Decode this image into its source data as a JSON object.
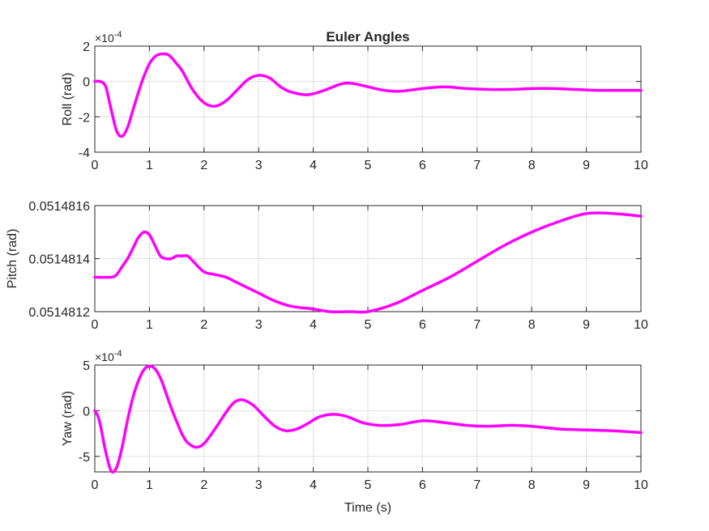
{
  "figure": {
    "title": "Euler Angles",
    "xlabel": "Time (s)",
    "line_color": "#ff00ff"
  },
  "chart_data": [
    {
      "type": "line",
      "title": "Euler Angles",
      "xlabel": "",
      "ylabel": "Roll (rad)",
      "xlim": [
        0,
        10
      ],
      "ylim": [
        -4,
        2
      ],
      "y_exponent_label": "×10^-4",
      "y_scale": 0.0001,
      "xticks": [
        "0",
        "1",
        "2",
        "3",
        "4",
        "5",
        "6",
        "7",
        "8",
        "9",
        "10"
      ],
      "yticks": [
        "-4",
        "-2",
        "0",
        "2"
      ],
      "grid": true,
      "series": [
        {
          "color": "#ff00ff",
          "x": [
            0,
            0.1,
            0.2,
            0.3,
            0.4,
            0.5,
            0.6,
            0.7,
            0.8,
            0.9,
            1.0,
            1.1,
            1.2,
            1.35,
            1.5,
            1.6,
            1.8,
            2.0,
            2.2,
            2.4,
            2.6,
            2.8,
            3.0,
            3.2,
            3.4,
            3.6,
            3.9,
            4.2,
            4.5,
            4.7,
            5.0,
            5.3,
            5.6,
            6.0,
            6.4,
            6.8,
            7.2,
            7.6,
            8.0,
            8.4,
            8.8,
            9.2,
            9.6,
            10.0
          ],
          "y": [
            0,
            0,
            -0.3,
            -1.6,
            -2.8,
            -3.1,
            -2.6,
            -1.6,
            -0.6,
            0.3,
            1.0,
            1.4,
            1.55,
            1.5,
            1.0,
            0.6,
            -0.5,
            -1.2,
            -1.4,
            -1.1,
            -0.5,
            0.1,
            0.35,
            0.2,
            -0.3,
            -0.6,
            -0.75,
            -0.5,
            -0.15,
            -0.1,
            -0.3,
            -0.5,
            -0.55,
            -0.4,
            -0.3,
            -0.4,
            -0.45,
            -0.45,
            -0.4,
            -0.4,
            -0.45,
            -0.5,
            -0.5,
            -0.5
          ]
        }
      ]
    },
    {
      "type": "line",
      "xlabel": "",
      "ylabel": "Pitch (rad)",
      "xlim": [
        0,
        10
      ],
      "ylim": [
        0.0514812,
        0.0514816
      ],
      "xticks": [
        "0",
        "1",
        "2",
        "3",
        "4",
        "5",
        "6",
        "7",
        "8",
        "9",
        "10"
      ],
      "yticks": [
        "0.0514812",
        "0.0514814",
        "0.0514816"
      ],
      "grid": true,
      "series": [
        {
          "color": "#ff00ff",
          "x": [
            0,
            0.3,
            0.4,
            0.5,
            0.6,
            0.7,
            0.8,
            0.9,
            1.0,
            1.1,
            1.2,
            1.3,
            1.4,
            1.5,
            1.6,
            1.7,
            1.8,
            2.0,
            2.2,
            2.4,
            2.6,
            2.8,
            3.0,
            3.3,
            3.6,
            4.0,
            4.3,
            4.7,
            5.0,
            5.5,
            6.0,
            6.5,
            7.0,
            7.5,
            8.0,
            8.5,
            9.0,
            9.5,
            10.0
          ],
          "y": [
            0.05148133,
            0.05148133,
            0.05148134,
            0.05148137,
            0.0514814,
            0.05148144,
            0.05148148,
            0.0514815,
            0.05148149,
            0.05148145,
            0.05148141,
            0.0514814,
            0.0514814,
            0.05148141,
            0.05148141,
            0.05148141,
            0.05148139,
            0.05148135,
            0.05148134,
            0.05148133,
            0.05148131,
            0.05148129,
            0.05148127,
            0.05148124,
            0.05148122,
            0.05148121,
            0.0514812,
            0.0514812,
            0.0514812,
            0.05148123,
            0.05148128,
            0.05148133,
            0.05148139,
            0.05148145,
            0.0514815,
            0.05148154,
            0.05148157,
            0.05148157,
            0.05148156
          ]
        }
      ]
    },
    {
      "type": "line",
      "xlabel": "Time (s)",
      "ylabel": "Yaw (rad)",
      "xlim": [
        0,
        10
      ],
      "ylim": [
        -6.7,
        5
      ],
      "y_exponent_label": "×10^-4",
      "y_scale": 0.0001,
      "xticks": [
        "0",
        "1",
        "2",
        "3",
        "4",
        "5",
        "6",
        "7",
        "8",
        "9",
        "10"
      ],
      "yticks": [
        "-5",
        "0",
        "5"
      ],
      "grid": true,
      "series": [
        {
          "color": "#ff00ff",
          "x": [
            0,
            0.05,
            0.1,
            0.2,
            0.3,
            0.4,
            0.5,
            0.6,
            0.7,
            0.8,
            0.9,
            1.0,
            1.1,
            1.2,
            1.3,
            1.4,
            1.5,
            1.6,
            1.7,
            1.85,
            2.0,
            2.2,
            2.4,
            2.55,
            2.7,
            2.9,
            3.1,
            3.3,
            3.5,
            3.7,
            3.9,
            4.1,
            4.35,
            4.6,
            4.9,
            5.2,
            5.6,
            6.0,
            6.4,
            6.8,
            7.2,
            7.6,
            8.0,
            8.5,
            9.0,
            9.5,
            10.0
          ],
          "y": [
            0,
            -0.5,
            -1.5,
            -4.5,
            -6.6,
            -6.2,
            -4.0,
            -1.0,
            1.5,
            3.3,
            4.5,
            4.9,
            4.6,
            3.6,
            2.0,
            0.3,
            -1.2,
            -2.6,
            -3.5,
            -4.0,
            -3.6,
            -2.0,
            -0.2,
            0.9,
            1.2,
            0.6,
            -0.6,
            -1.7,
            -2.2,
            -2.0,
            -1.4,
            -0.7,
            -0.4,
            -0.6,
            -1.3,
            -1.6,
            -1.5,
            -1.1,
            -1.3,
            -1.6,
            -1.7,
            -1.6,
            -1.7,
            -2.0,
            -2.1,
            -2.2,
            -2.4
          ]
        }
      ]
    }
  ]
}
